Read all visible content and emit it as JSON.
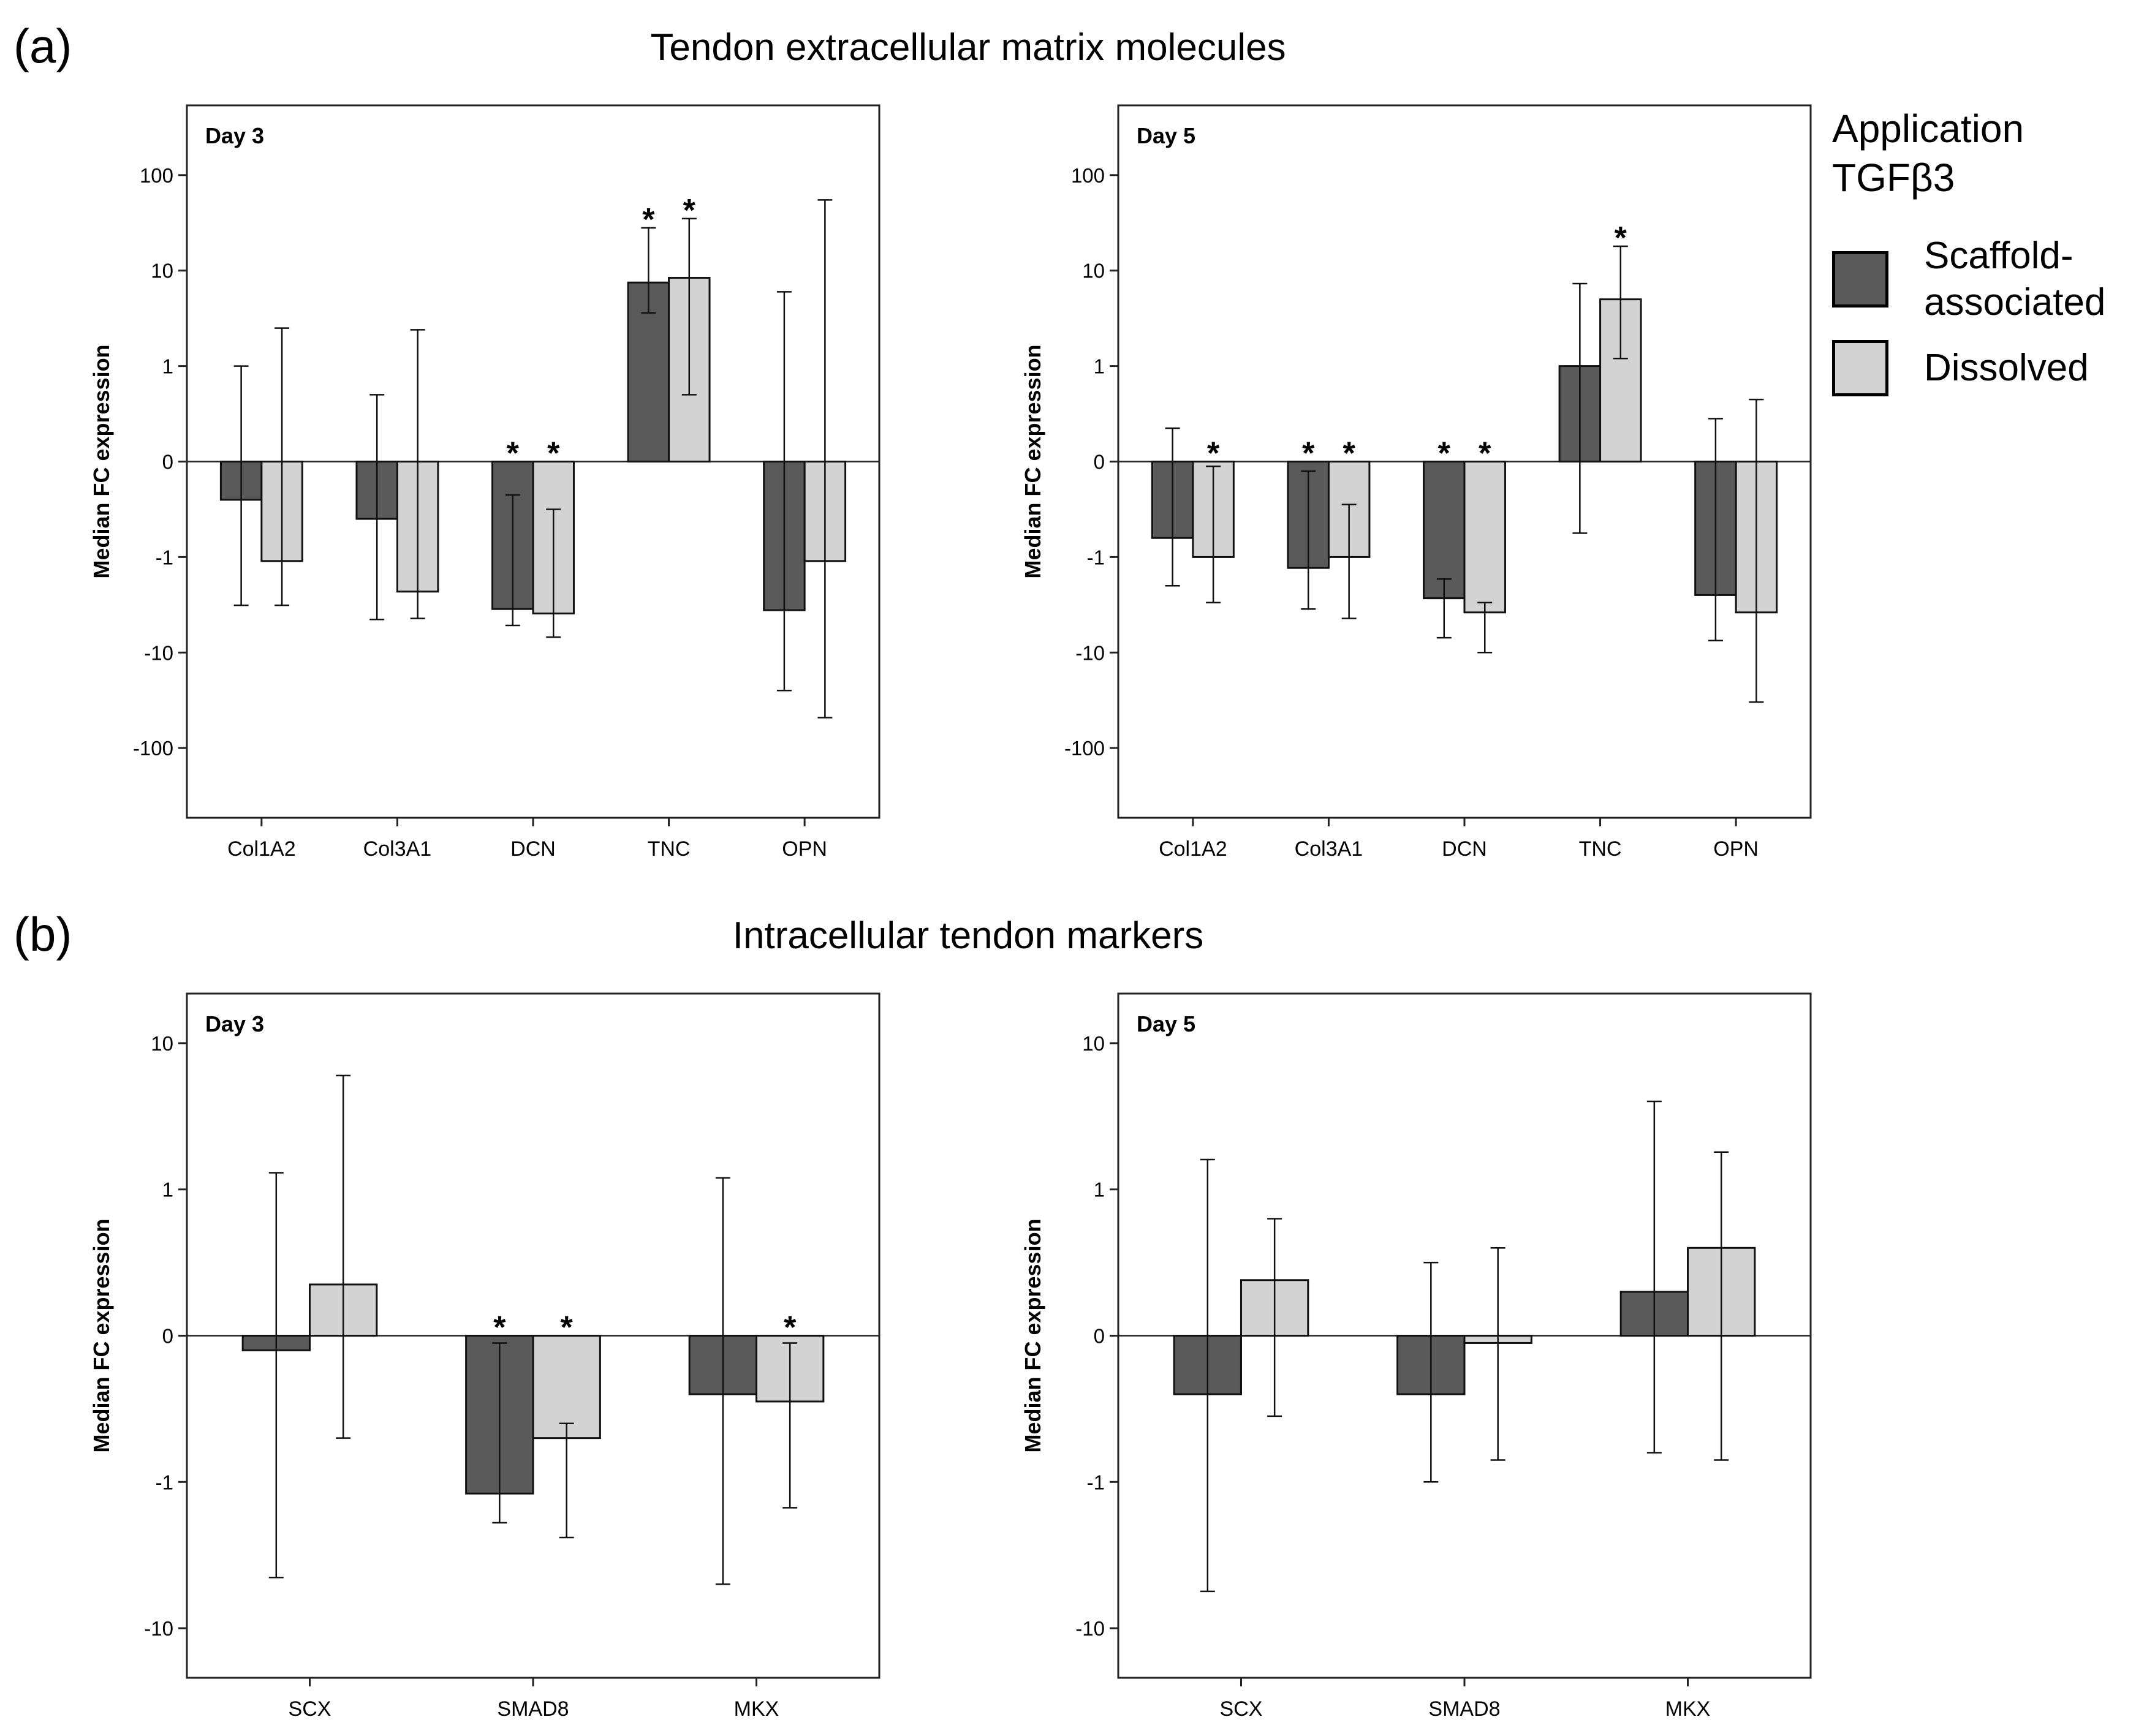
{
  "sections": [
    {
      "letter": "(a)",
      "title": "Tendon extracellular matrix molecules"
    },
    {
      "letter": "(b)",
      "title": "Intracellular tendon markers"
    }
  ],
  "legend": {
    "title": "Application TGFβ3",
    "items": [
      {
        "label": "Scaffold-associated",
        "color": "#5a5a5a"
      },
      {
        "label": "Dissolved",
        "color": "#d3d3d3"
      }
    ]
  },
  "chart_data": [
    {
      "type": "bar",
      "id": "a_day3",
      "title": "Day 3",
      "ylabel": "Median FC expression",
      "scale": "symlog",
      "ylim": [
        -400,
        400
      ],
      "yticks": [
        100,
        10,
        1,
        0,
        -1,
        -10,
        -100
      ],
      "ytick_labels": [
        "100",
        "10",
        "1",
        "0",
        "-1",
        "-10",
        "-100"
      ],
      "categories": [
        "Col1A2",
        "Col3A1",
        "DCN",
        "TNC",
        "OPN"
      ],
      "series": [
        {
          "name": "Scaffold-associated",
          "values": [
            -0.4,
            -0.6,
            -3.5,
            7.5,
            -3.6
          ],
          "err_low": [
            -3.2,
            -4.5,
            -5.2,
            3.6,
            -25
          ],
          "err_high": [
            1.0,
            0.7,
            -0.35,
            28,
            6
          ]
        },
        {
          "name": "Dissolved",
          "values": [
            -1.1,
            -2.3,
            -3.9,
            8.4,
            -1.1
          ],
          "err_low": [
            -3.2,
            -4.4,
            -6.9,
            0.7,
            -48
          ],
          "err_high": [
            2.5,
            2.4,
            -0.5,
            35,
            55
          ]
        }
      ],
      "significance": [
        [
          false,
          false,
          true,
          true,
          false
        ],
        [
          false,
          false,
          true,
          true,
          false
        ]
      ]
    },
    {
      "type": "bar",
      "id": "a_day5",
      "title": "Day 5",
      "ylabel": "Median FC expression",
      "scale": "symlog",
      "ylim": [
        -400,
        400
      ],
      "yticks": [
        100,
        10,
        1,
        0,
        -1,
        -10,
        -100
      ],
      "ytick_labels": [
        "100",
        "10",
        "1",
        "0",
        "-1",
        "-10",
        "-100"
      ],
      "categories": [
        "Col1A2",
        "Col3A1",
        "DCN",
        "TNC",
        "OPN"
      ],
      "series": [
        {
          "name": "Scaffold-associated",
          "values": [
            -0.8,
            -1.3,
            -2.7,
            1.0,
            -2.5
          ],
          "err_low": [
            -2.0,
            -3.5,
            -7.0,
            -0.75,
            -7.5
          ],
          "err_high": [
            0.35,
            -0.1,
            -1.7,
            7.3,
            0.45
          ]
        },
        {
          "name": "Dissolved",
          "values": [
            -1.0,
            -1.0,
            -3.8,
            5.0,
            -3.8
          ],
          "err_low": [
            -3.0,
            -4.4,
            -10,
            1.2,
            -33
          ],
          "err_high": [
            -0.05,
            -0.45,
            -3.0,
            18,
            0.65
          ]
        }
      ],
      "significance": [
        [
          false,
          true,
          true,
          false,
          false
        ],
        [
          true,
          true,
          true,
          true,
          false
        ]
      ]
    },
    {
      "type": "bar",
      "id": "b_day3",
      "title": "Day 3",
      "ylabel": "Median FC expression",
      "scale": "symlog",
      "ylim": [
        -18,
        18
      ],
      "yticks": [
        10,
        1,
        0,
        -1,
        -10
      ],
      "ytick_labels": [
        "10",
        "1",
        "0",
        "-1",
        "-10"
      ],
      "categories": [
        "SCX",
        "SMAD8",
        "MKX"
      ],
      "series": [
        {
          "name": "Scaffold-associated",
          "values": [
            -0.1,
            -1.2,
            -0.4
          ],
          "err_low": [
            -4.5,
            -1.9,
            -5.0
          ],
          "err_high": [
            1.3,
            -0.05,
            1.2
          ]
        },
        {
          "name": "Dissolved",
          "values": [
            0.35,
            -0.7,
            -0.45
          ],
          "err_low": [
            -0.7,
            -2.4,
            -1.5
          ],
          "err_high": [
            6.0,
            -0.6,
            -0.05
          ]
        }
      ],
      "significance": [
        [
          false,
          true,
          false
        ],
        [
          false,
          true,
          true
        ]
      ]
    },
    {
      "type": "bar",
      "id": "b_day5",
      "title": "Day 5",
      "ylabel": "Median FC expression",
      "scale": "symlog",
      "ylim": [
        -18,
        18
      ],
      "yticks": [
        10,
        1,
        0,
        -1,
        -10
      ],
      "ytick_labels": [
        "10",
        "1",
        "0",
        "-1",
        "-10"
      ],
      "categories": [
        "SCX",
        "SMAD8",
        "MKX"
      ],
      "series": [
        {
          "name": "Scaffold-associated",
          "values": [
            -0.4,
            -0.4,
            0.3
          ],
          "err_low": [
            -5.6,
            -1.0,
            -0.8
          ],
          "err_high": [
            1.6,
            0.5,
            4.0
          ]
        },
        {
          "name": "Dissolved",
          "values": [
            0.38,
            -0.05,
            0.6
          ],
          "err_low": [
            -0.55,
            -0.85,
            -0.85
          ],
          "err_high": [
            0.8,
            0.6,
            1.8
          ]
        }
      ],
      "significance": [
        [
          false,
          false,
          false
        ],
        [
          false,
          false,
          false
        ]
      ]
    }
  ]
}
